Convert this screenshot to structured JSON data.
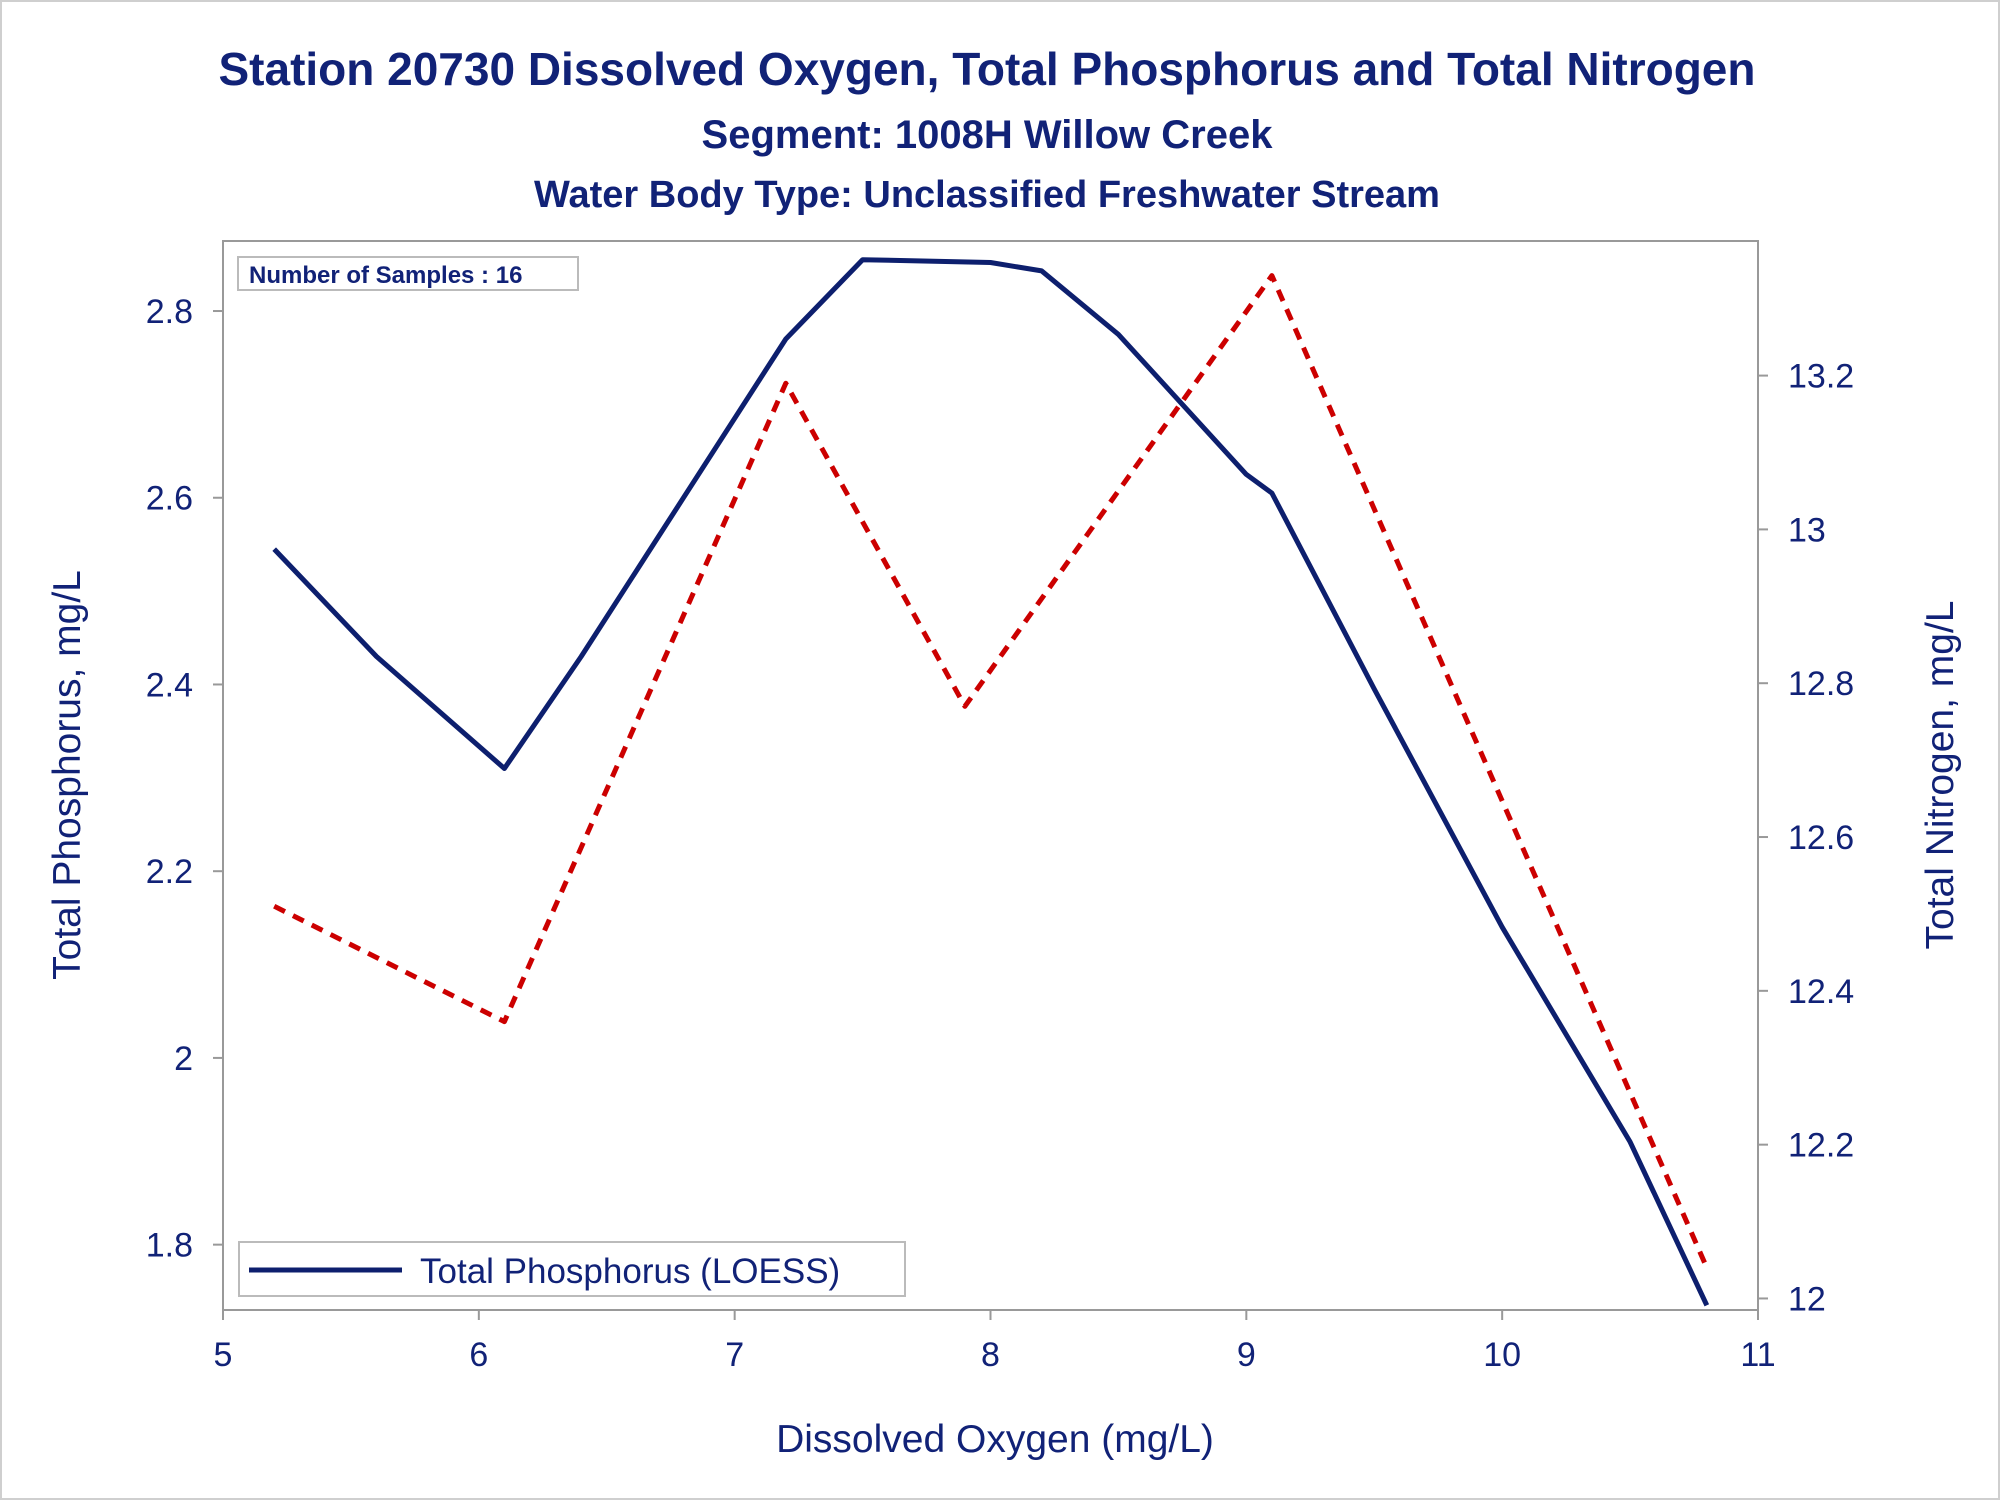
{
  "chart_data": {
    "type": "line",
    "title": "Station 20730  Dissolved Oxygen, Total Phosphorus and Total Nitrogen",
    "subtitle": "Segment: 1008H  Willow Creek",
    "subtitle2": "Water Body Type: Unclassified Freshwater Stream",
    "xlabel": "Dissolved Oxygen (mg/L)",
    "ylabel_left": "Total Phosphorus, mg/L",
    "ylabel_right": "Total Nitrogen, mg/L",
    "xlim": [
      5,
      11
    ],
    "ylim_left": [
      1.73,
      2.875
    ],
    "ylim_right": [
      11.985,
      13.375
    ],
    "x_ticks": [
      "5",
      "6",
      "7",
      "8",
      "9",
      "10",
      "11"
    ],
    "y_left_ticks": [
      "1.8",
      "2",
      "2.2",
      "2.4",
      "2.6",
      "2.8"
    ],
    "y_right_ticks": [
      "12",
      "12.2",
      "12.4",
      "12.6",
      "12.8",
      "13",
      "13.2"
    ],
    "inset_label": "Number of Samples : 16",
    "legend_position": "bottom-left",
    "series": [
      {
        "name": "Total Phosphorus (LOESS)",
        "axis": "left",
        "color": "#0d1f6e",
        "style": "solid",
        "points": [
          [
            5.2,
            2.545
          ],
          [
            5.6,
            2.43
          ],
          [
            6.1,
            2.31
          ],
          [
            6.4,
            2.43
          ],
          [
            6.8,
            2.6
          ],
          [
            7.2,
            2.77
          ],
          [
            7.5,
            2.855
          ],
          [
            8.0,
            2.852
          ],
          [
            8.2,
            2.843
          ],
          [
            8.5,
            2.775
          ],
          [
            9.0,
            2.625
          ],
          [
            9.1,
            2.605
          ],
          [
            9.5,
            2.395
          ],
          [
            10.0,
            2.14
          ],
          [
            10.5,
            1.91
          ],
          [
            10.8,
            1.735
          ]
        ]
      },
      {
        "name": "",
        "axis": "right",
        "color": "#cc0000",
        "style": "dashed",
        "points": [
          [
            5.2,
            12.51
          ],
          [
            6.1,
            12.36
          ],
          [
            7.2,
            13.19
          ],
          [
            7.9,
            12.77
          ],
          [
            9.1,
            13.33
          ],
          [
            10.8,
            12.04
          ]
        ]
      }
    ]
  }
}
